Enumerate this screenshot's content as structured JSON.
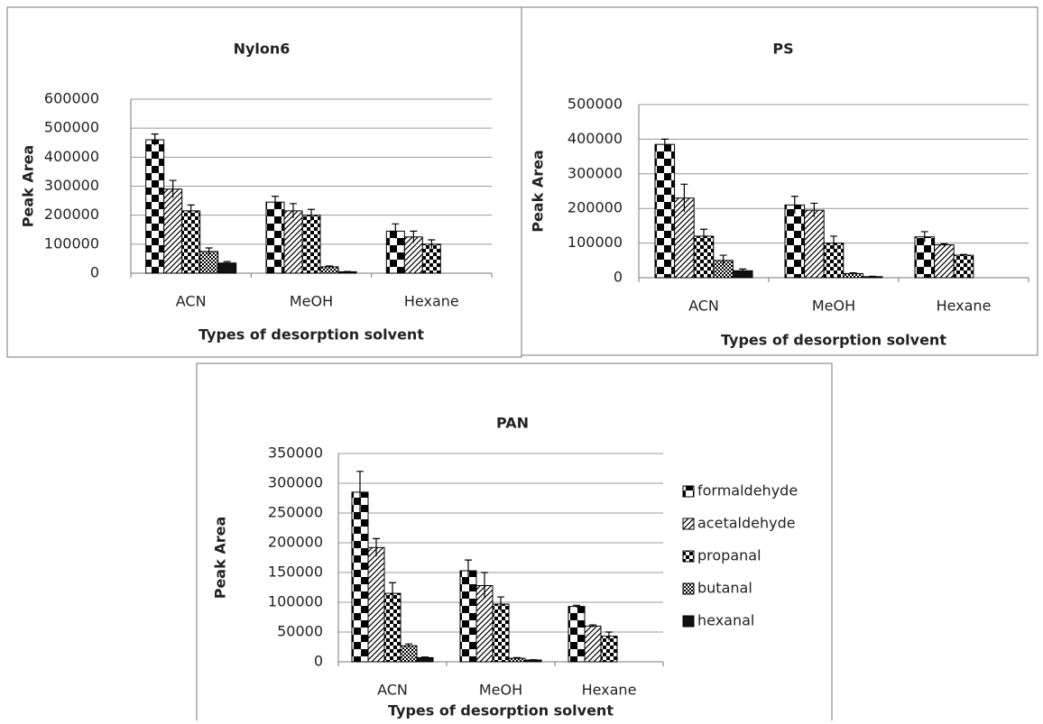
{
  "chart_data": [
    {
      "type": "bar",
      "title": "Nylon6",
      "xlabel": "Types of desorption solvent",
      "ylabel": "Peak Area",
      "categories": [
        "ACN",
        "MeOH",
        "Hexane"
      ],
      "ylim": [
        0,
        600000
      ],
      "yticks": [
        0,
        100000,
        200000,
        300000,
        400000,
        500000,
        600000
      ],
      "grid": true,
      "color": "#000000",
      "series": [
        {
          "values": [
            460000,
            245000,
            145000
          ],
          "errors": [
            20000,
            20000,
            25000
          ]
        },
        {
          "values": [
            290000,
            215000,
            125000
          ],
          "errors": [
            30000,
            25000,
            20000
          ]
        },
        {
          "values": [
            215000,
            200000,
            100000
          ],
          "errors": [
            20000,
            20000,
            15000
          ]
        },
        {
          "values": [
            75000,
            22000,
            null
          ],
          "errors": [
            12000,
            3000,
            null
          ]
        },
        {
          "values": [
            35000,
            5000,
            null
          ],
          "errors": [
            5000,
            1000,
            null
          ]
        }
      ]
    },
    {
      "type": "bar",
      "title": "PS",
      "xlabel": "Types of desorption solvent",
      "ylabel": "Peak Area",
      "categories": [
        "ACN",
        "MeOH",
        "Hexane"
      ],
      "ylim": [
        0,
        500000
      ],
      "yticks": [
        0,
        100000,
        200000,
        300000,
        400000,
        500000
      ],
      "grid": true,
      "color": "#000000",
      "series": [
        {
          "values": [
            385000,
            210000,
            118000
          ],
          "errors": [
            15000,
            25000,
            15000
          ]
        },
        {
          "values": [
            230000,
            195000,
            95000
          ],
          "errors": [
            40000,
            20000,
            3000
          ]
        },
        {
          "values": [
            120000,
            100000,
            65000
          ],
          "errors": [
            20000,
            20000,
            2000
          ]
        },
        {
          "values": [
            50000,
            12000,
            null
          ],
          "errors": [
            15000,
            2000,
            null
          ]
        },
        {
          "values": [
            20000,
            3000,
            null
          ],
          "errors": [
            5000,
            1000,
            null
          ]
        }
      ]
    },
    {
      "type": "bar",
      "title": "PAN",
      "xlabel": "Types of desorption solvent",
      "ylabel": "Peak Area",
      "categories": [
        "ACN",
        "MeOH",
        "Hexane"
      ],
      "ylim": [
        0,
        350000
      ],
      "yticks": [
        0,
        50000,
        100000,
        150000,
        200000,
        250000,
        300000,
        350000
      ],
      "grid": true,
      "color": "#000000",
      "legend": "right",
      "series": [
        {
          "name": "formaldehyde",
          "values": [
            285000,
            153000,
            93000
          ],
          "errors": [
            35000,
            18000,
            2000
          ]
        },
        {
          "name": "acetaldehyde",
          "values": [
            192000,
            128000,
            60000
          ],
          "errors": [
            15000,
            22000,
            2000
          ]
        },
        {
          "name": "propanal",
          "values": [
            115000,
            97000,
            43000
          ],
          "errors": [
            18000,
            12000,
            7000
          ]
        },
        {
          "name": "butanal",
          "values": [
            27000,
            6000,
            null
          ],
          "errors": [
            3000,
            1000,
            null
          ]
        },
        {
          "name": "hexanal",
          "values": [
            7000,
            3000,
            null
          ],
          "errors": [
            1000,
            500,
            null
          ]
        }
      ]
    }
  ]
}
